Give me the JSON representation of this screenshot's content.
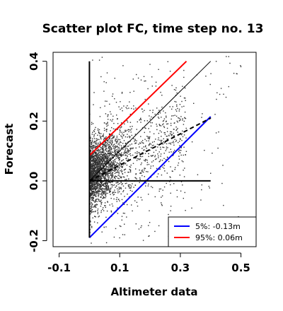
{
  "chart_data": {
    "type": "scatter",
    "title": "Scatter plot FC, time step no. 13",
    "xlabel": "Altimeter data",
    "ylabel": "Forecast",
    "xlim": [
      -0.12,
      0.55
    ],
    "ylim": [
      -0.22,
      0.43
    ],
    "x_ticks": [
      -0.1,
      0.1,
      0.3,
      0.5
    ],
    "x_tick_labels": [
      "-0.1",
      "0.1",
      "0.3",
      "0.5"
    ],
    "y_ticks": [
      -0.2,
      0.0,
      0.2,
      0.4
    ],
    "y_tick_labels": [
      "-0.2",
      "0.0",
      "0.2",
      "0.4"
    ],
    "grid": false,
    "legend_position": "bottom-right",
    "point_color": "#333333",
    "scatter_summary": {
      "approx_point_count": 3000,
      "cluster": "dense near altimeter 0.0–0.15, forecast -0.05–0.2; sparse outliers to altimeter 0.5"
    },
    "lines": [
      {
        "label": "5%: -0.13m",
        "color": "#0000ff",
        "x": [
          0.0,
          0.4
        ],
        "y": [
          -0.19,
          0.215
        ]
      },
      {
        "label": "95%:  0.06m",
        "color": "#ff0000",
        "x": [
          0.0,
          0.32
        ],
        "y": [
          0.085,
          0.4
        ]
      },
      {
        "label": "",
        "color": "#000000",
        "style": "solid",
        "x": [
          0.0,
          0.4
        ],
        "y": [
          0.0,
          0.4
        ]
      },
      {
        "label": "",
        "color": "#000000",
        "style": "dashed",
        "x": [
          0.0,
          0.4
        ],
        "y": [
          0.0,
          0.21
        ]
      },
      {
        "label": "",
        "color": "#000000",
        "style": "solid",
        "x": [
          0.0,
          0.4
        ],
        "y": [
          0.0,
          0.0
        ]
      },
      {
        "label": "",
        "color": "#000000",
        "style": "solid",
        "x": [
          0.0,
          0.0
        ],
        "y": [
          -0.19,
          0.4
        ]
      }
    ],
    "legend": [
      {
        "label": "5%: -0.13m",
        "color": "#0000ff"
      },
      {
        "label": "95%:  0.06m",
        "color": "#ff0000"
      }
    ]
  }
}
